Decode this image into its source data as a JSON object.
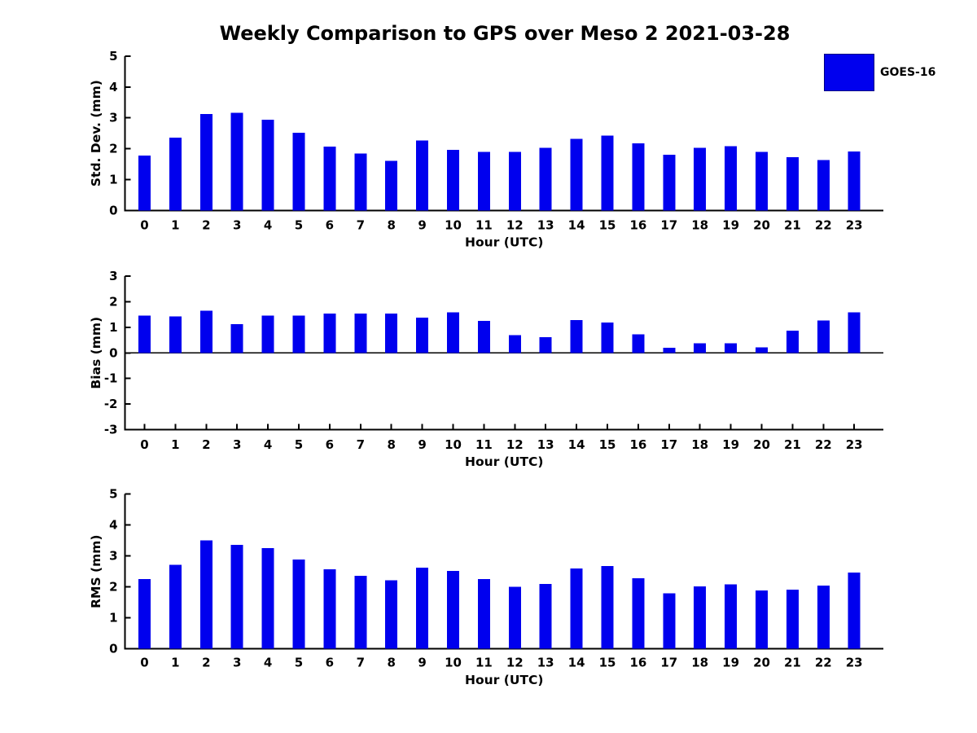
{
  "title": "Weekly Comparison to GPS over Meso 2 2021-03-28",
  "legend": {
    "label": "GOES-16",
    "swatch_color": "#0000EE"
  },
  "colors": {
    "bar": "#0000EE",
    "axis": "#000000",
    "text": "#000000",
    "background": "#FFFFFF"
  },
  "chart_data": [
    {
      "type": "bar",
      "name": "std-dev",
      "series": [
        {
          "name": "GOES-16"
        }
      ],
      "categories": [
        "0",
        "1",
        "2",
        "3",
        "4",
        "5",
        "6",
        "7",
        "8",
        "9",
        "10",
        "11",
        "12",
        "13",
        "14",
        "15",
        "16",
        "17",
        "18",
        "19",
        "20",
        "21",
        "22",
        "23"
      ],
      "values": [
        1.78,
        2.36,
        3.12,
        3.17,
        2.94,
        2.52,
        2.07,
        1.84,
        1.6,
        2.26,
        1.96,
        1.9,
        1.89,
        2.03,
        2.32,
        2.42,
        2.18,
        1.81,
        2.03,
        2.08,
        1.9,
        1.73,
        1.63,
        1.91
      ],
      "xlabel": "Hour (UTC)",
      "ylabel": "Std. Dev. (mm)",
      "ylim": [
        0,
        5
      ],
      "yticks": [
        0,
        1,
        2,
        3,
        4,
        5
      ],
      "grid": false,
      "legend_position": "upper-right-outside"
    },
    {
      "type": "bar",
      "name": "bias",
      "series": [
        {
          "name": "GOES-16"
        }
      ],
      "categories": [
        "0",
        "1",
        "2",
        "3",
        "4",
        "5",
        "6",
        "7",
        "8",
        "9",
        "10",
        "11",
        "12",
        "13",
        "14",
        "15",
        "16",
        "17",
        "18",
        "19",
        "20",
        "21",
        "22",
        "23"
      ],
      "values": [
        1.45,
        1.42,
        1.65,
        1.12,
        1.46,
        1.46,
        1.53,
        1.53,
        1.53,
        1.38,
        1.58,
        1.25,
        0.7,
        0.62,
        1.28,
        1.18,
        0.72,
        0.2,
        0.38,
        0.37,
        0.21,
        0.86,
        1.27,
        1.58
      ],
      "xlabel": "Hour (UTC)",
      "ylabel": "Bias (mm)",
      "ylim": [
        -3,
        3
      ],
      "yticks": [
        -3,
        -2,
        -1,
        0,
        1,
        2,
        3
      ],
      "grid": false,
      "zero_line": true
    },
    {
      "type": "bar",
      "name": "rms",
      "series": [
        {
          "name": "GOES-16"
        }
      ],
      "categories": [
        "0",
        "1",
        "2",
        "3",
        "4",
        "5",
        "6",
        "7",
        "8",
        "9",
        "10",
        "11",
        "12",
        "13",
        "14",
        "15",
        "16",
        "17",
        "18",
        "19",
        "20",
        "21",
        "22",
        "23"
      ],
      "values": [
        2.25,
        2.72,
        3.5,
        3.36,
        3.25,
        2.89,
        2.57,
        2.36,
        2.21,
        2.62,
        2.52,
        2.25,
        2.0,
        2.1,
        2.6,
        2.67,
        2.28,
        1.8,
        2.02,
        2.08,
        1.89,
        1.91,
        2.05,
        2.47
      ],
      "xlabel": "Hour (UTC)",
      "ylabel": "RMS (mm)",
      "ylim": [
        0,
        5
      ],
      "yticks": [
        0,
        1,
        2,
        3,
        4,
        5
      ],
      "grid": false
    }
  ]
}
